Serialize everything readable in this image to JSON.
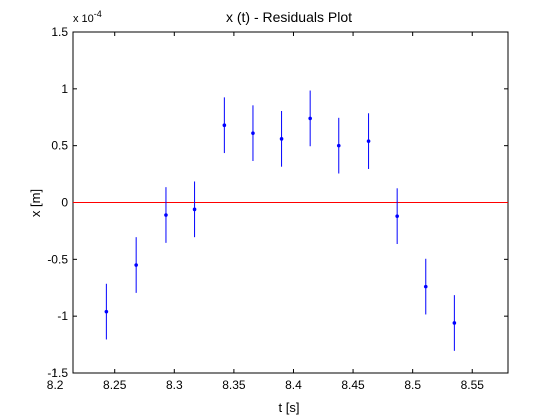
{
  "chart_data": {
    "type": "scatter",
    "title": "x (t) - Residuals Plot",
    "xlabel": "t [s]",
    "ylabel": "x [m]",
    "y_exponent_base": "x 10",
    "y_exponent_power": "-4",
    "xlim": [
      8.215,
      8.58
    ],
    "ylim": [
      -1.5,
      1.5
    ],
    "x_ticks": [
      8.2,
      8.25,
      8.3,
      8.35,
      8.4,
      8.45,
      8.5,
      8.55
    ],
    "x_tick_labels": [
      "8.2",
      "8.25",
      "8.3",
      "8.35",
      "8.4",
      "8.45",
      "8.5",
      "8.55"
    ],
    "y_ticks": [
      -1.5,
      -1,
      -0.5,
      0,
      0.5,
      1,
      1.5
    ],
    "y_tick_labels": [
      "-1.5",
      "-1",
      "-0.5",
      "0",
      "0.5",
      "1",
      "1.5"
    ],
    "grid": false,
    "reference_line": {
      "y": 0,
      "color": "#ff0000"
    },
    "marker_color": "#0000ff",
    "series": [
      {
        "x": [
          8.243,
          8.268,
          8.293,
          8.317,
          8.342,
          8.366,
          8.39,
          8.414,
          8.438,
          8.463,
          8.487,
          8.511,
          8.535
        ],
        "y": [
          -0.96,
          -0.55,
          -0.11,
          -0.06,
          0.68,
          0.61,
          0.56,
          0.74,
          0.5,
          0.54,
          -0.12,
          -0.74,
          -1.06
        ],
        "err": [
          0.245,
          0.245,
          0.245,
          0.245,
          0.245,
          0.245,
          0.245,
          0.245,
          0.245,
          0.245,
          0.245,
          0.245,
          0.245
        ]
      }
    ]
  }
}
